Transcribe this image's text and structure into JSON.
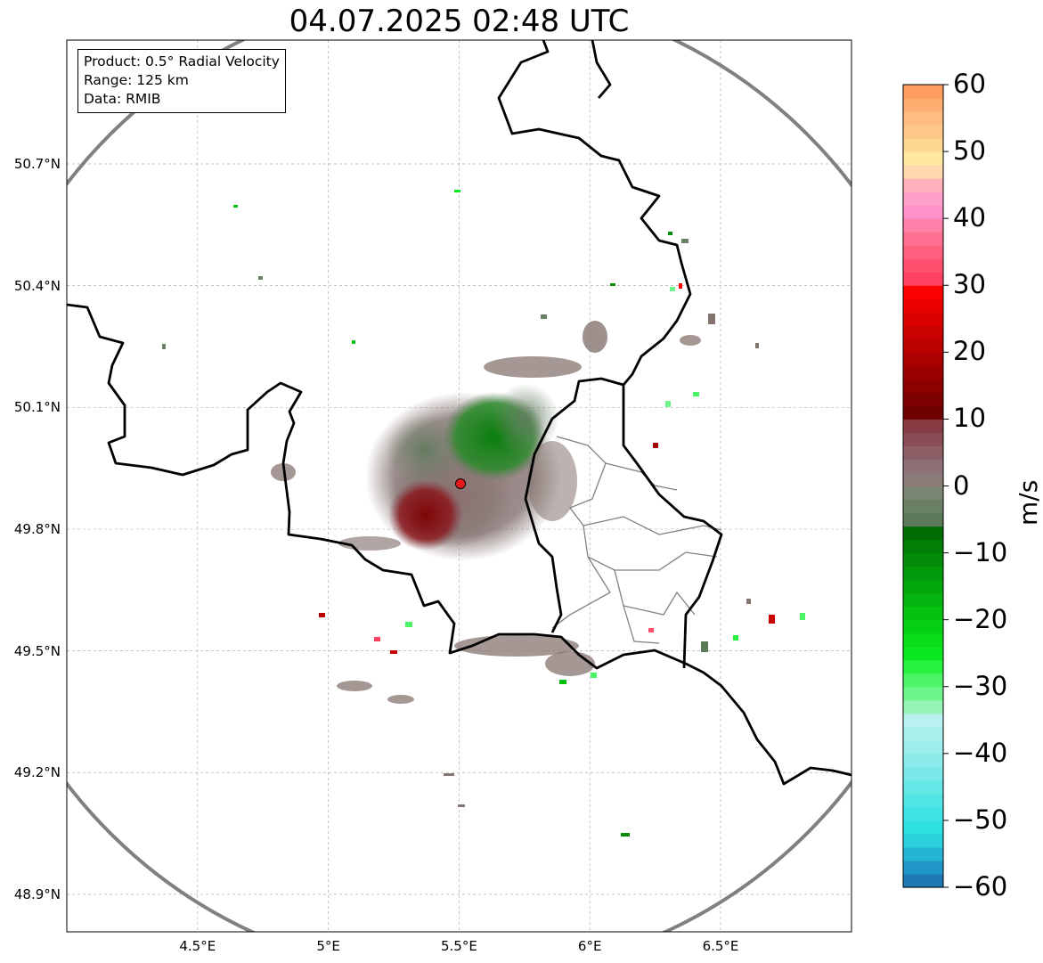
{
  "title": "04.07.2025 02:48 UTC",
  "info": {
    "product": "Product: 0.5° Radial Velocity",
    "range": "Range: 125 km",
    "source": "Data: RMIB"
  },
  "axes": {
    "lat_ticks": [
      {
        "value": 50.7,
        "label": "50.7°N"
      },
      {
        "value": 50.4,
        "label": "50.4°N"
      },
      {
        "value": 50.1,
        "label": "50.1°N"
      },
      {
        "value": 49.8,
        "label": "49.8°N"
      },
      {
        "value": 49.5,
        "label": "49.5°N"
      },
      {
        "value": 49.2,
        "label": "49.2°N"
      },
      {
        "value": 48.9,
        "label": "48.9°N"
      }
    ],
    "lon_ticks": [
      {
        "value": 4.5,
        "label": "4.5°E"
      },
      {
        "value": 5.0,
        "label": "5°E"
      },
      {
        "value": 5.5,
        "label": "5.5°E"
      },
      {
        "value": 6.0,
        "label": "6°E"
      },
      {
        "value": 6.5,
        "label": "6.5°E"
      }
    ],
    "lon_range": [
      4.0,
      7.0
    ],
    "lat_range": [
      48.8,
      50.98
    ]
  },
  "radar": {
    "site_lon": 5.505,
    "site_lat": 49.915,
    "range_km": 125,
    "site_color": "#e41a1c"
  },
  "colorbar": {
    "units": "m/s",
    "min": -60,
    "max": 60,
    "ticks": [
      {
        "value": 60,
        "label": "60"
      },
      {
        "value": 50,
        "label": "50"
      },
      {
        "value": 40,
        "label": "40"
      },
      {
        "value": 30,
        "label": "30"
      },
      {
        "value": 20,
        "label": "20"
      },
      {
        "value": 10,
        "label": "10"
      },
      {
        "value": 0,
        "label": "0"
      },
      {
        "value": -10,
        "label": "−10"
      },
      {
        "value": -20,
        "label": "−20"
      },
      {
        "value": -30,
        "label": "−30"
      },
      {
        "value": -40,
        "label": "−40"
      },
      {
        "value": -50,
        "label": "−50"
      },
      {
        "value": -60,
        "label": "−60"
      }
    ],
    "stops": [
      {
        "from": -60,
        "to": -58,
        "color": "#1f78b4"
      },
      {
        "from": -58,
        "to": -56,
        "color": "#2196c8"
      },
      {
        "from": -56,
        "to": -54,
        "color": "#26b4d4"
      },
      {
        "from": -54,
        "to": -52,
        "color": "#2bd2dd"
      },
      {
        "from": -52,
        "to": -50,
        "color": "#2ee0e0"
      },
      {
        "from": -50,
        "to": -48,
        "color": "#3ee3e3"
      },
      {
        "from": -48,
        "to": -46,
        "color": "#52e5e5"
      },
      {
        "from": -46,
        "to": -44,
        "color": "#66e7e7"
      },
      {
        "from": -44,
        "to": -42,
        "color": "#7ae9e9"
      },
      {
        "from": -42,
        "to": -40,
        "color": "#8cebeb"
      },
      {
        "from": -40,
        "to": -38,
        "color": "#9eeded"
      },
      {
        "from": -38,
        "to": -36,
        "color": "#acefef"
      },
      {
        "from": -36,
        "to": -34,
        "color": "#b9f1f1"
      },
      {
        "from": -34,
        "to": -32,
        "color": "#94f5b4"
      },
      {
        "from": -32,
        "to": -30,
        "color": "#6df58a"
      },
      {
        "from": -30,
        "to": -28,
        "color": "#4cf566"
      },
      {
        "from": -28,
        "to": -26,
        "color": "#27f23f"
      },
      {
        "from": -26,
        "to": -24,
        "color": "#0ce81f"
      },
      {
        "from": -24,
        "to": -22,
        "color": "#08dd18"
      },
      {
        "from": -22,
        "to": -20,
        "color": "#06d014"
      },
      {
        "from": -20,
        "to": -18,
        "color": "#05c211"
      },
      {
        "from": -18,
        "to": -16,
        "color": "#04b40e"
      },
      {
        "from": -16,
        "to": -14,
        "color": "#03a70c"
      },
      {
        "from": -14,
        "to": -12,
        "color": "#02990a"
      },
      {
        "from": -12,
        "to": -10,
        "color": "#028c08"
      },
      {
        "from": -10,
        "to": -8,
        "color": "#017e06"
      },
      {
        "from": -8,
        "to": -6,
        "color": "#016d04"
      },
      {
        "from": -6,
        "to": -4,
        "color": "#5c7a5a"
      },
      {
        "from": -4,
        "to": -2,
        "color": "#6a8066"
      },
      {
        "from": -2,
        "to": 0,
        "color": "#7b8573"
      },
      {
        "from": 0,
        "to": 2,
        "color": "#8a7a78"
      },
      {
        "from": 2,
        "to": 4,
        "color": "#8e6f76"
      },
      {
        "from": 4,
        "to": 6,
        "color": "#8c5e66"
      },
      {
        "from": 6,
        "to": 8,
        "color": "#8a4c55"
      },
      {
        "from": 8,
        "to": 10,
        "color": "#873c44"
      },
      {
        "from": 10,
        "to": 12,
        "color": "#6e0000"
      },
      {
        "from": 12,
        "to": 14,
        "color": "#7d0000"
      },
      {
        "from": 14,
        "to": 16,
        "color": "#8c0000"
      },
      {
        "from": 16,
        "to": 18,
        "color": "#9b0000"
      },
      {
        "from": 18,
        "to": 20,
        "color": "#ab0000"
      },
      {
        "from": 20,
        "to": 22,
        "color": "#bb0000"
      },
      {
        "from": 22,
        "to": 24,
        "color": "#cb0000"
      },
      {
        "from": 24,
        "to": 26,
        "color": "#db0000"
      },
      {
        "from": 26,
        "to": 28,
        "color": "#eb0000"
      },
      {
        "from": 28,
        "to": 30,
        "color": "#fb0000"
      },
      {
        "from": 30,
        "to": 32,
        "color": "#ff4060"
      },
      {
        "from": 32,
        "to": 34,
        "color": "#ff5070"
      },
      {
        "from": 34,
        "to": 36,
        "color": "#ff6080"
      },
      {
        "from": 36,
        "to": 38,
        "color": "#ff7090"
      },
      {
        "from": 38,
        "to": 40,
        "color": "#ff80a8"
      },
      {
        "from": 40,
        "to": 42,
        "color": "#ff90c8"
      },
      {
        "from": 42,
        "to": 44,
        "color": "#ffa0c8"
      },
      {
        "from": 44,
        "to": 46,
        "color": "#ffb0b8"
      },
      {
        "from": 46,
        "to": 48,
        "color": "#ffd8b0"
      },
      {
        "from": 48,
        "to": 50,
        "color": "#ffe8a0"
      },
      {
        "from": 50,
        "to": 52,
        "color": "#ffd890"
      },
      {
        "from": 52,
        "to": 54,
        "color": "#ffc888"
      },
      {
        "from": 54,
        "to": 56,
        "color": "#ffbc80"
      },
      {
        "from": 56,
        "to": 58,
        "color": "#ffac70"
      },
      {
        "from": 58,
        "to": 60,
        "color": "#ff9c60"
      }
    ]
  },
  "colors": {
    "border": "#000000",
    "admin_border": "#808080",
    "range_ring": "#808080",
    "grid": "#b0b0b0",
    "inbound_green": "#2e8b2e",
    "outbound_red": "#8b0000",
    "clutter_gray": "#857470"
  }
}
